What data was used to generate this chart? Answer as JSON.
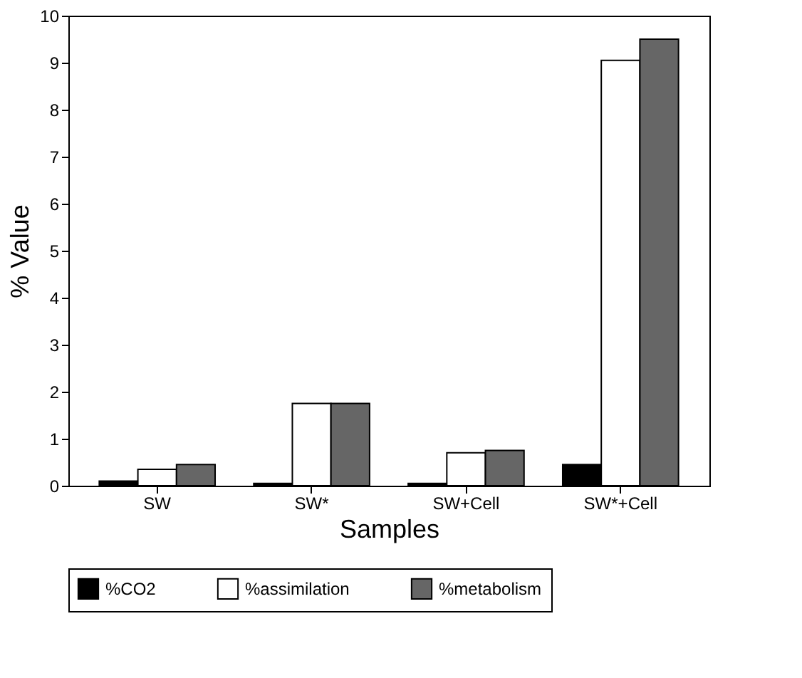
{
  "chart_data": {
    "type": "bar",
    "xlabel": "Samples",
    "ylabel": "% Value",
    "categories": [
      "SW",
      "SW*",
      "SW+Cell",
      "SW*+Cell"
    ],
    "series": [
      {
        "name": "%CO2",
        "color": "#000000",
        "values": [
          0.1,
          0.05,
          0.05,
          0.45
        ]
      },
      {
        "name": "%assimilation",
        "color": "#ffffff",
        "values": [
          0.35,
          1.75,
          0.7,
          9.05
        ]
      },
      {
        "name": "%metabolism",
        "color": "#666666",
        "values": [
          0.45,
          1.75,
          0.75,
          9.5
        ]
      }
    ],
    "ylim": [
      0,
      10
    ],
    "yticks": [
      0,
      1,
      2,
      3,
      4,
      5,
      6,
      7,
      8,
      9,
      10
    ],
    "grid": false,
    "legend": "bottom"
  }
}
